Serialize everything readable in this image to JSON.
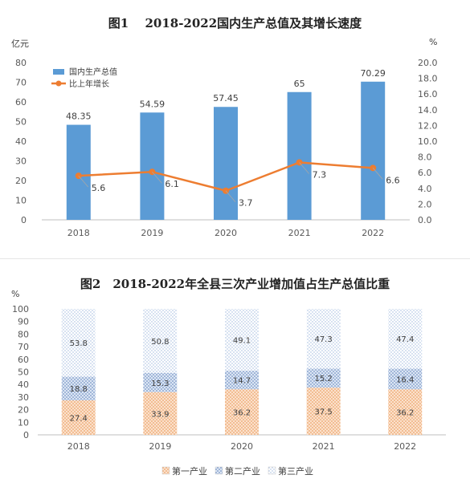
{
  "chart_data": [
    {
      "type": "bar",
      "title": "图1　 2018-2022国内生产总值及其增长速度",
      "categories": [
        "2018",
        "2019",
        "2020",
        "2021",
        "2022"
      ],
      "left_unit": "亿元",
      "right_unit": "%",
      "ylim": [
        0,
        80
      ],
      "y2lim": [
        0,
        20
      ],
      "left_ticks": [
        "0",
        "10",
        "20",
        "30",
        "40",
        "50",
        "60",
        "70",
        "80"
      ],
      "right_ticks": [
        "0.0",
        "2.0",
        "4.0",
        "6.0",
        "8.0",
        "10.0",
        "12.0",
        "14.0",
        "16.0",
        "18.0",
        "20.0"
      ],
      "legend_position": "top-left",
      "series": [
        {
          "name": "国内生产总值",
          "kind": "bar",
          "axis": "left",
          "color": "#5B9BD5",
          "values": [
            48.35,
            54.59,
            57.45,
            65,
            70.29
          ],
          "labels": [
            "48.35",
            "54.59",
            "57.45",
            "65",
            "70.29"
          ]
        },
        {
          "name": "比上年增长",
          "kind": "line",
          "axis": "right",
          "color": "#ED7D31",
          "values": [
            5.6,
            6.1,
            3.7,
            7.3,
            6.6
          ],
          "labels": [
            "5.6",
            "6.1",
            "3.7",
            "7.3",
            "6.6"
          ]
        }
      ]
    },
    {
      "type": "bar",
      "stacked": true,
      "title": "图2　2018-2022年全县三次产业增加值占生产总值比重",
      "categories": [
        "2018",
        "2019",
        "2020",
        "2021",
        "2022"
      ],
      "y_unit": "%",
      "ylim": [
        0,
        100
      ],
      "y_ticks": [
        "0",
        "10",
        "20",
        "30",
        "40",
        "50",
        "60",
        "70",
        "80",
        "90",
        "100"
      ],
      "legend_position": "bottom",
      "series": [
        {
          "name": "第一产业",
          "color": "#F4B183",
          "values": [
            27.4,
            33.9,
            36.2,
            37.5,
            36.2
          ],
          "labels": [
            "27.4",
            "33.9",
            "36.2",
            "37.5",
            "36.2"
          ]
        },
        {
          "name": "第二产业",
          "color": "#8FAADC",
          "values": [
            18.8,
            15.3,
            14.7,
            15.2,
            16.4
          ],
          "labels": [
            "18.8",
            "15.3",
            "14.7",
            "15.2",
            "16.4"
          ]
        },
        {
          "name": "第三产业",
          "color": "#B4C7E7",
          "values": [
            53.8,
            50.8,
            49.1,
            47.3,
            47.4
          ],
          "labels": [
            "53.8",
            "50.8",
            "49.1",
            "47.3",
            "47.4"
          ]
        }
      ]
    }
  ]
}
